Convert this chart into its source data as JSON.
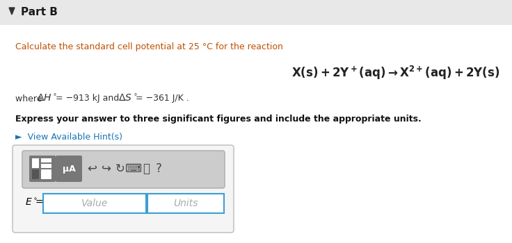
{
  "bg_color": "#f2f2f2",
  "header_bg": "#e8e8e8",
  "content_bg": "#ffffff",
  "title_text": "Part B",
  "title_color": "#1a1a1a",
  "arrow_color": "#333333",
  "intro_color": "#c05000",
  "where_color": "#333333",
  "bold_text": "Express your answer to three significant figures and include the appropriate units.",
  "bold_color": "#111111",
  "hint_text": "►  View Available Hint(s)",
  "hint_color": "#1a73b5",
  "value_placeholder": "Value",
  "units_placeholder": "Units",
  "box_border_color": "#3a9fd4",
  "toolbar_bg": "#cccccc",
  "toolbar_border": "#aaaaaa",
  "outer_box_bg": "#f5f5f5",
  "outer_box_border": "#bbbbbb",
  "placeholder_color": "#aaaaaa"
}
